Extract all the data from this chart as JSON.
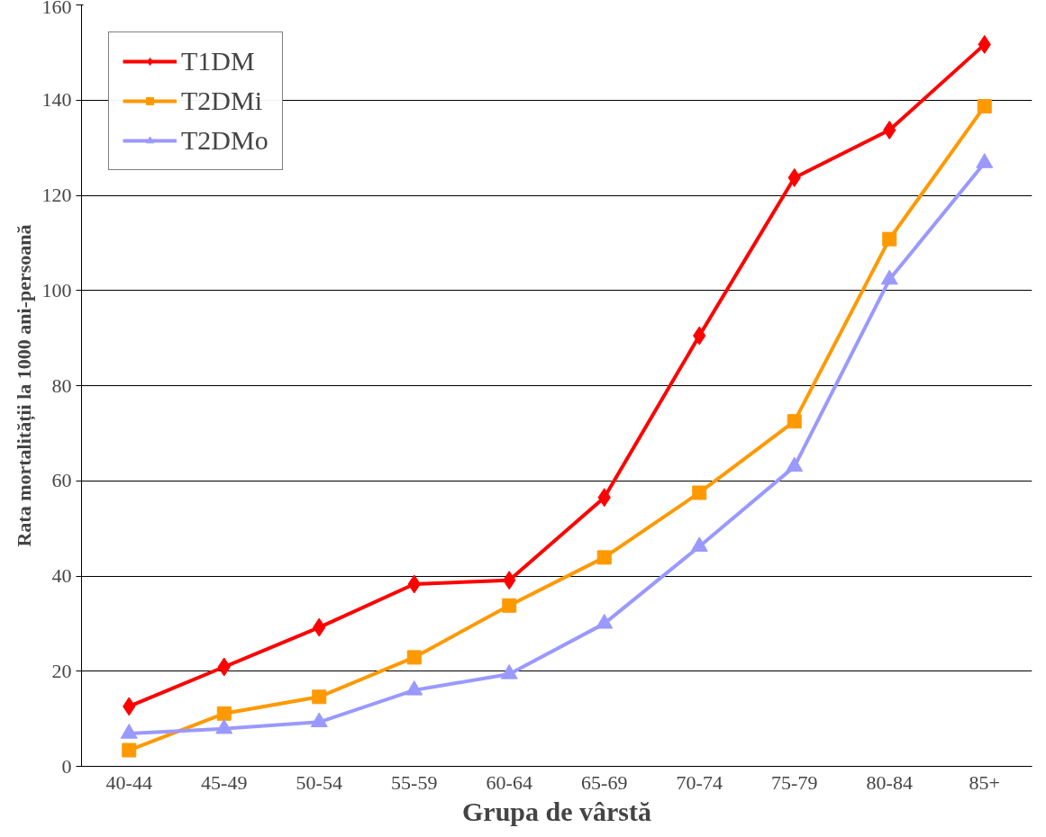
{
  "chart_data": {
    "type": "line",
    "xlabel": "Grupa de vârstă",
    "ylabel": "Rata mortalității la 1000 ani-persoană",
    "categories": [
      "40-44",
      "45-49",
      "50-54",
      "55-59",
      "60-64",
      "65-69",
      "70-74",
      "75-79",
      "80-84",
      "85+"
    ],
    "ylim": [
      0,
      160
    ],
    "yticks": [
      0,
      20,
      40,
      60,
      80,
      100,
      120,
      140,
      160
    ],
    "grid": "y",
    "legend": "top left",
    "line_style": "solid",
    "series": [
      {
        "name": "T1DM",
        "color": "#ff0000",
        "marker": "diamond",
        "values": [
          12.6,
          20.9,
          29.2,
          38.3,
          39.1,
          56.5,
          90.5,
          123.7,
          133.7,
          151.7
        ]
      },
      {
        "name": "T2DMi",
        "color": "#ff9900",
        "marker": "square",
        "values": [
          3.4,
          11.1,
          14.6,
          22.9,
          33.8,
          43.9,
          57.5,
          72.5,
          110.8,
          138.7
        ]
      },
      {
        "name": "T2DMo",
        "color": "#9999ff",
        "marker": "triangle",
        "values": [
          6.9,
          7.9,
          9.3,
          16.0,
          19.4,
          30.0,
          46.2,
          63.0,
          102.3,
          126.8
        ]
      }
    ]
  }
}
